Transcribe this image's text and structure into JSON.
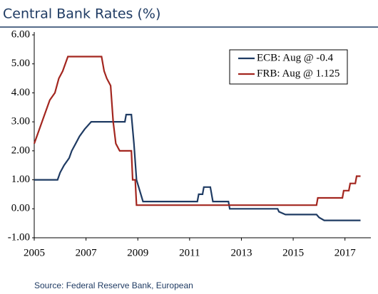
{
  "chart_data": {
    "type": "line",
    "title": "Central Bank Rates (%)",
    "source": "Source: Federal Reserve Bank, European",
    "xlim": [
      2005,
      2018
    ],
    "xticks": [
      2005,
      2007,
      2009,
      2011,
      2013,
      2015,
      2017
    ],
    "ylim": [
      -1,
      6
    ],
    "yticks": [
      {
        "value": 6,
        "label": "6.00"
      },
      {
        "value": 5,
        "label": "5.00"
      },
      {
        "value": 4,
        "label": "4.00"
      },
      {
        "value": 3,
        "label": "3.00"
      },
      {
        "value": 2,
        "label": "2.00"
      },
      {
        "value": 1,
        "label": "1.00"
      },
      {
        "value": 0,
        "label": "0.00"
      },
      {
        "value": -1,
        "label": "-1.00"
      }
    ],
    "legend": "top-right",
    "series": [
      {
        "name": "ECB: Aug @ -0.4",
        "color": "#1f3b63",
        "x": [
          2005,
          2005.9,
          2006.0,
          2006.15,
          2006.35,
          2006.45,
          2006.6,
          2006.75,
          2006.95,
          2007.2,
          2008.5,
          2008.55,
          2008.75,
          2008.85,
          2008.95,
          2009.2,
          2011.3,
          2011.35,
          2011.5,
          2011.55,
          2011.8,
          2011.9,
          2012.5,
          2012.55,
          2014.4,
          2014.45,
          2014.7,
          2015.9,
          2016.0,
          2016.2,
          2017.6
        ],
        "values": [
          1.0,
          1.0,
          1.25,
          1.5,
          1.75,
          2.0,
          2.25,
          2.5,
          2.75,
          3.0,
          3.0,
          3.25,
          3.25,
          2.25,
          1.0,
          0.25,
          0.25,
          0.5,
          0.5,
          0.75,
          0.75,
          0.25,
          0.25,
          0.0,
          0.0,
          -0.1,
          -0.2,
          -0.2,
          -0.3,
          -0.4,
          -0.4
        ]
      },
      {
        "name": "FRB: Aug @ 1.125",
        "color": "#a3261f",
        "x": [
          2005,
          2005.2,
          2005.4,
          2005.6,
          2005.8,
          2005.95,
          2006.1,
          2006.3,
          2007.6,
          2007.7,
          2007.8,
          2007.95,
          2008.05,
          2008.15,
          2008.3,
          2008.75,
          2008.8,
          2008.9,
          2008.95,
          2015.9,
          2015.95,
          2016.9,
          2016.95,
          2017.15,
          2017.2,
          2017.4,
          2017.45,
          2017.6
        ],
        "values": [
          2.25,
          2.75,
          3.25,
          3.75,
          4.0,
          4.5,
          4.75,
          5.25,
          5.25,
          4.75,
          4.5,
          4.25,
          3.0,
          2.25,
          2.0,
          2.0,
          1.0,
          1.0,
          0.125,
          0.125,
          0.375,
          0.375,
          0.625,
          0.625,
          0.875,
          0.875,
          1.125,
          1.125
        ]
      }
    ]
  }
}
